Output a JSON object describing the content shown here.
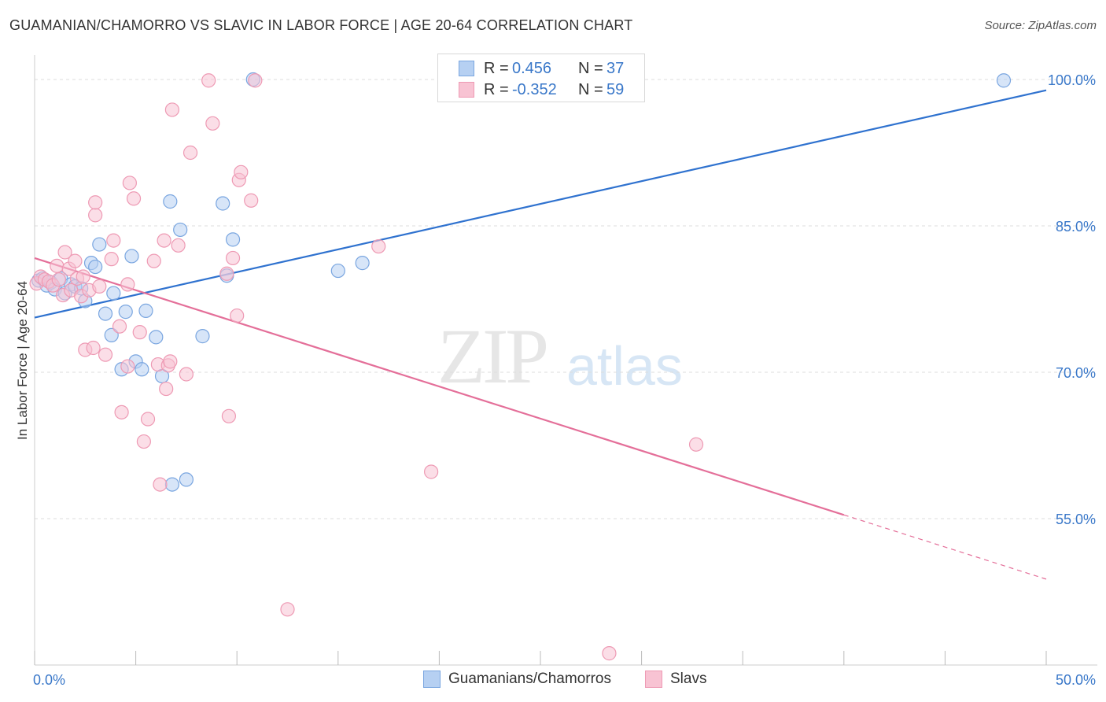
{
  "header": {
    "title": "GUAMANIAN/CHAMORRO VS SLAVIC IN LABOR FORCE | AGE 20-64 CORRELATION CHART",
    "source": "Source: ZipAtlas.com"
  },
  "watermark": {
    "zip": "ZIP",
    "atlas": "atlas"
  },
  "legend_stats": [
    {
      "r_label": "R =",
      "r_value": "0.456",
      "n_label": "N =",
      "n_value": "37"
    },
    {
      "r_label": "R =",
      "r_value": "-0.352",
      "n_label": "N =",
      "n_value": "59"
    }
  ],
  "legend_bottom": [
    {
      "label": "Guamanians/Chamorros"
    },
    {
      "label": "Slavs"
    }
  ],
  "colors": {
    "blue_fill": "#b6d0f2",
    "blue_stroke": "#7aa6e0",
    "blue_line": "#2f72cf",
    "pink_fill": "#f8c3d3",
    "pink_stroke": "#ee9ab4",
    "pink_line": "#e46f99",
    "axis_label": "#3a78c9",
    "grid": "#dddddd"
  },
  "chart_data": {
    "type": "scatter",
    "title": "GUAMANIAN/CHAMORRO VS SLAVIC IN LABOR FORCE | AGE 20-64 CORRELATION CHART",
    "xlabel": "",
    "ylabel": "In Labor Force | Age 20-64",
    "xlim": [
      0,
      50
    ],
    "ylim": [
      40,
      102.5
    ],
    "x_tick_labels": [
      {
        "value": 0,
        "label": "0.0%"
      },
      {
        "value": 50,
        "label": "50.0%"
      }
    ],
    "y_tick_labels": [
      {
        "value": 55,
        "label": "55.0%"
      },
      {
        "value": 70,
        "label": "70.0%"
      },
      {
        "value": 85,
        "label": "85.0%"
      },
      {
        "value": 100,
        "label": "100.0%"
      }
    ],
    "x_minor_ticks": [
      0,
      5,
      10,
      15,
      20,
      25,
      30,
      35,
      40,
      45,
      50
    ],
    "y_gridlines": [
      55,
      70,
      85,
      100
    ],
    "series": [
      {
        "name": "Guamanians/Chamorros",
        "color": "blue",
        "points": [
          [
            0.2,
            79.4
          ],
          [
            0.4,
            79.6
          ],
          [
            0.6,
            78.9
          ],
          [
            0.8,
            79.2
          ],
          [
            1.0,
            78.5
          ],
          [
            1.3,
            79.6
          ],
          [
            1.5,
            78.1
          ],
          [
            1.8,
            79.0
          ],
          [
            2.0,
            78.8
          ],
          [
            2.3,
            78.6
          ],
          [
            2.5,
            77.3
          ],
          [
            2.8,
            81.2
          ],
          [
            3.0,
            80.8
          ],
          [
            3.2,
            83.1
          ],
          [
            3.5,
            76.0
          ],
          [
            3.8,
            73.8
          ],
          [
            3.9,
            78.1
          ],
          [
            4.3,
            70.3
          ],
          [
            4.5,
            76.2
          ],
          [
            4.8,
            81.9
          ],
          [
            5.0,
            71.1
          ],
          [
            5.3,
            70.3
          ],
          [
            5.5,
            76.3
          ],
          [
            6.0,
            73.6
          ],
          [
            6.3,
            69.6
          ],
          [
            6.7,
            87.5
          ],
          [
            6.8,
            58.5
          ],
          [
            7.2,
            84.6
          ],
          [
            7.5,
            59.0
          ],
          [
            8.3,
            73.7
          ],
          [
            9.3,
            87.3
          ],
          [
            9.5,
            79.9
          ],
          [
            9.8,
            83.6
          ],
          [
            10.8,
            100.0
          ],
          [
            15.0,
            80.4
          ],
          [
            16.2,
            81.2
          ],
          [
            47.9,
            99.9
          ]
        ]
      },
      {
        "name": "Slavs",
        "color": "pink",
        "points": [
          [
            0.1,
            79.1
          ],
          [
            0.3,
            79.8
          ],
          [
            0.5,
            79.5
          ],
          [
            0.7,
            79.3
          ],
          [
            0.9,
            78.9
          ],
          [
            1.1,
            80.9
          ],
          [
            1.2,
            79.5
          ],
          [
            1.4,
            77.9
          ],
          [
            1.5,
            82.3
          ],
          [
            1.7,
            80.6
          ],
          [
            1.8,
            78.4
          ],
          [
            2.0,
            81.4
          ],
          [
            2.1,
            79.6
          ],
          [
            2.3,
            77.8
          ],
          [
            2.4,
            79.8
          ],
          [
            2.5,
            72.3
          ],
          [
            2.7,
            78.4
          ],
          [
            2.9,
            72.5
          ],
          [
            3.0,
            86.1
          ],
          [
            3.0,
            87.4
          ],
          [
            3.2,
            78.8
          ],
          [
            3.5,
            71.8
          ],
          [
            3.8,
            81.6
          ],
          [
            3.9,
            83.5
          ],
          [
            4.2,
            74.7
          ],
          [
            4.3,
            65.9
          ],
          [
            4.6,
            79.0
          ],
          [
            4.6,
            70.6
          ],
          [
            4.7,
            89.4
          ],
          [
            4.9,
            87.8
          ],
          [
            5.2,
            74.1
          ],
          [
            5.4,
            62.9
          ],
          [
            5.6,
            65.2
          ],
          [
            5.9,
            81.4
          ],
          [
            6.1,
            70.8
          ],
          [
            6.2,
            58.5
          ],
          [
            6.4,
            83.5
          ],
          [
            6.5,
            68.3
          ],
          [
            6.6,
            70.7
          ],
          [
            6.7,
            71.1
          ],
          [
            6.8,
            96.9
          ],
          [
            7.1,
            83.0
          ],
          [
            7.5,
            69.8
          ],
          [
            7.7,
            92.5
          ],
          [
            8.6,
            99.9
          ],
          [
            8.8,
            95.5
          ],
          [
            9.5,
            80.1
          ],
          [
            9.6,
            65.5
          ],
          [
            9.8,
            81.7
          ],
          [
            10.0,
            75.8
          ],
          [
            10.1,
            89.7
          ],
          [
            10.2,
            90.5
          ],
          [
            10.7,
            87.6
          ],
          [
            10.9,
            99.9
          ],
          [
            12.5,
            45.7
          ],
          [
            17.0,
            82.9
          ],
          [
            19.6,
            59.8
          ],
          [
            28.4,
            41.2
          ],
          [
            32.7,
            62.6
          ]
        ]
      }
    ],
    "trend_lines": [
      {
        "series": "Guamanians/Chamorros",
        "x0": 0,
        "y0": 75.6,
        "x1": 50,
        "y1": 98.9,
        "dashed_from": null
      },
      {
        "series": "Slavs",
        "x0": 0,
        "y0": 81.7,
        "x1": 50,
        "y1": 48.8,
        "dashed_from": 40
      }
    ]
  }
}
